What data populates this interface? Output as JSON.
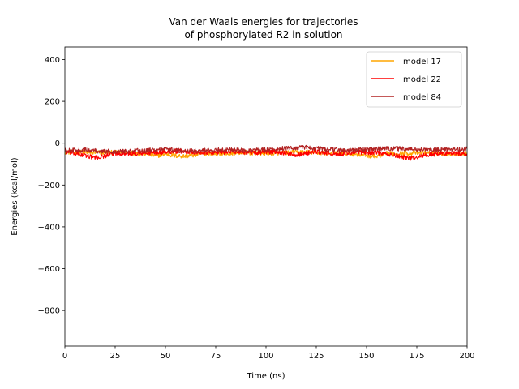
{
  "chart_data": {
    "type": "line",
    "title_lines": [
      "Van der Waals energies for trajectories",
      "of phosphorylated R2 in solution"
    ],
    "xlabel": "Time (ns)",
    "ylabel": "Energies (kcal/mol)",
    "xlim": [
      0,
      200
    ],
    "ylim": [
      -970,
      460
    ],
    "xticks": [
      0,
      25,
      50,
      75,
      100,
      125,
      150,
      175,
      200
    ],
    "yticks": [
      -800,
      -600,
      -400,
      -200,
      0,
      200,
      400
    ],
    "xtick_labels": [
      "0",
      "25",
      "50",
      "75",
      "100",
      "125",
      "150",
      "175",
      "200"
    ],
    "ytick_labels": [
      "−800",
      "−600",
      "−400",
      "−200",
      "0",
      "200",
      "400"
    ],
    "grid": false,
    "legend_position": "top-right",
    "series": [
      {
        "name": "model 17",
        "color": "#ffa500",
        "x": [
          0,
          10,
          20,
          30,
          40,
          45,
          50,
          55,
          60,
          65,
          70,
          80,
          90,
          100,
          110,
          120,
          130,
          140,
          150,
          155,
          160,
          170,
          180,
          190,
          200
        ],
        "y": [
          -42,
          -44,
          -45,
          -44,
          -50,
          -60,
          -52,
          -60,
          -62,
          -55,
          -48,
          -50,
          -45,
          -50,
          -45,
          -42,
          -48,
          -48,
          -58,
          -65,
          -50,
          -48,
          -45,
          -50,
          -48
        ]
      },
      {
        "name": "model 22",
        "color": "#ff0000",
        "x": [
          0,
          8,
          16,
          25,
          35,
          45,
          55,
          65,
          75,
          85,
          95,
          105,
          115,
          125,
          135,
          145,
          155,
          165,
          172,
          180,
          190,
          200
        ],
        "y": [
          -40,
          -55,
          -70,
          -48,
          -50,
          -45,
          -38,
          -42,
          -45,
          -40,
          -45,
          -40,
          -55,
          -40,
          -55,
          -42,
          -45,
          -60,
          -72,
          -55,
          -48,
          -52
        ]
      },
      {
        "name": "model 84",
        "color": "#b22222",
        "x": [
          0,
          10,
          20,
          30,
          40,
          50,
          60,
          70,
          80,
          90,
          100,
          110,
          120,
          130,
          140,
          150,
          160,
          170,
          180,
          190,
          200
        ],
        "y": [
          -35,
          -32,
          -40,
          -38,
          -35,
          -30,
          -38,
          -35,
          -32,
          -35,
          -30,
          -25,
          -20,
          -30,
          -35,
          -30,
          -25,
          -28,
          -32,
          -30,
          -28
        ]
      }
    ]
  }
}
